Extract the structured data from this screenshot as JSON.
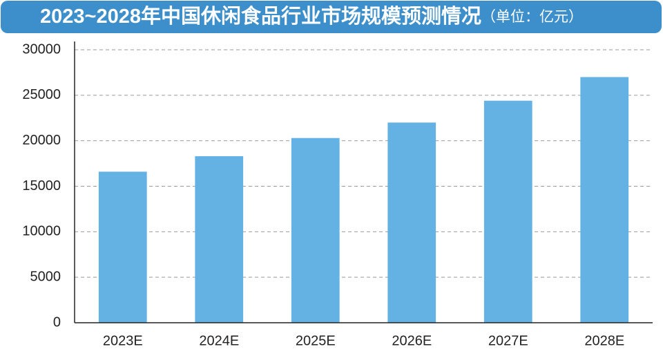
{
  "chart_data": {
    "type": "bar",
    "title": "2023~2028年中国休闲食品行业市场规模预测情况",
    "subtitle": "（单位：亿元）",
    "categories": [
      "2023E",
      "2024E",
      "2025E",
      "2026E",
      "2027E",
      "2028E"
    ],
    "values": [
      16600,
      18300,
      20300,
      22000,
      24400,
      27000
    ],
    "color": "#64b1e4",
    "ylim": [
      0,
      30000
    ],
    "yticks": [
      0,
      5000,
      10000,
      15000,
      20000,
      25000,
      30000
    ],
    "grid": true
  }
}
